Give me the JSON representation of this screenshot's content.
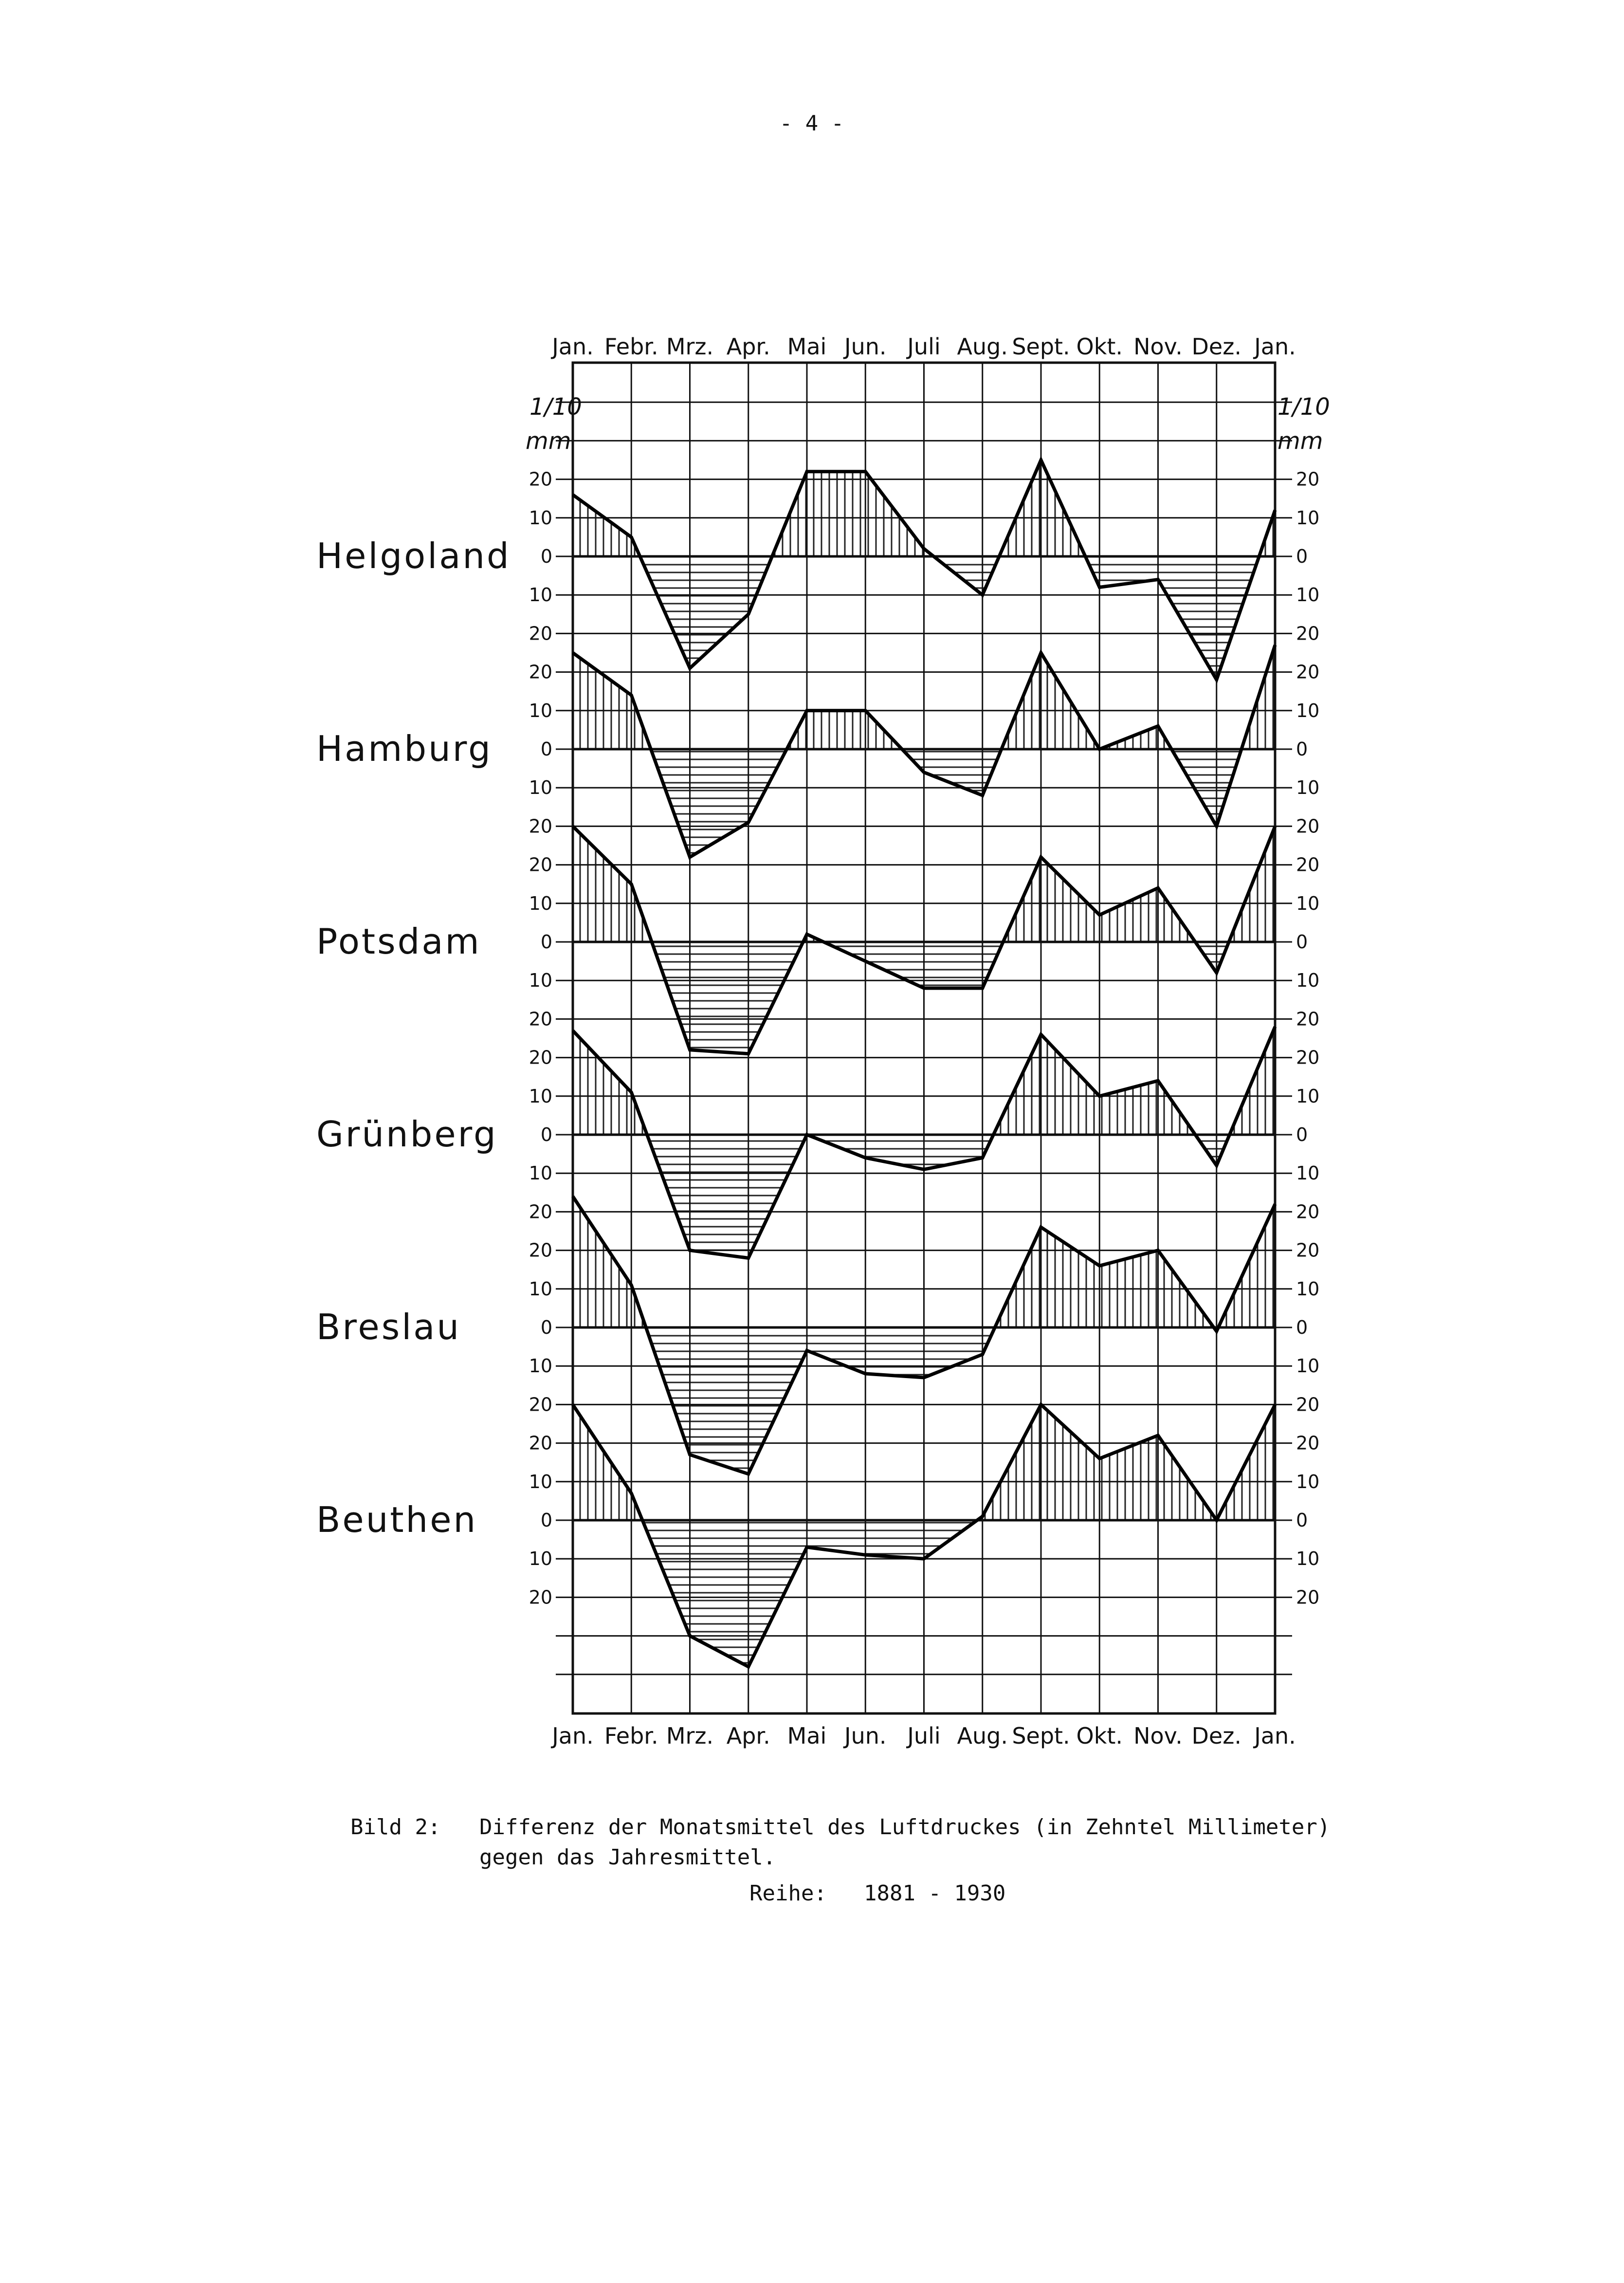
{
  "page_header": "- 4 -",
  "caption": {
    "label": "Bild 2:",
    "line1": "Differenz der Monatsmittel des Luftdruckes (in Zehntel Millimeter)",
    "line2": "gegen das Jahresmittel.",
    "series_label": "Reihe:",
    "series_years": "1881 - 1930"
  },
  "chart_data": {
    "type": "line",
    "months": [
      "Jan.",
      "Febr.",
      "Mrz.",
      "Apr.",
      "Mai",
      "Jun.",
      "Juli",
      "Aug.",
      "Sept.",
      "Okt.",
      "Nov.",
      "Dez.",
      "Jan."
    ],
    "unit_numerator": "1/10",
    "unit_denominator": "mm",
    "tick_labels": [
      "20",
      "10",
      "0",
      "10",
      "20"
    ],
    "grid": true,
    "ylim": [
      -20,
      20
    ],
    "fill_positive": "vertical hatching",
    "fill_negative": "horizontal hatching",
    "series": [
      {
        "name": "Helgoland",
        "values": [
          16,
          5,
          -29,
          -15,
          22,
          22,
          2,
          -10,
          25,
          -8,
          -6,
          -32,
          12
        ]
      },
      {
        "name": "Hamburg",
        "values": [
          25,
          14,
          -28,
          -19,
          10,
          10,
          -6,
          -12,
          25,
          0,
          6,
          -20,
          27
        ]
      },
      {
        "name": "Potsdam",
        "values": [
          30,
          15,
          -28,
          -29,
          2,
          -5,
          -12,
          -12,
          22,
          7,
          14,
          -8,
          30
        ]
      },
      {
        "name": "Grünberg",
        "values": [
          27,
          11,
          -30,
          -32,
          0,
          -6,
          -9,
          -6,
          26,
          10,
          14,
          -8,
          28
        ]
      },
      {
        "name": "Breslau",
        "values": [
          34,
          11,
          -33,
          -38,
          -6,
          -12,
          -13,
          -7,
          26,
          16,
          20,
          -1,
          32
        ]
      },
      {
        "name": "Beuthen",
        "values": [
          30,
          7,
          -30,
          -38,
          -7,
          -9,
          -10,
          1,
          30,
          16,
          22,
          0,
          30
        ]
      }
    ]
  }
}
